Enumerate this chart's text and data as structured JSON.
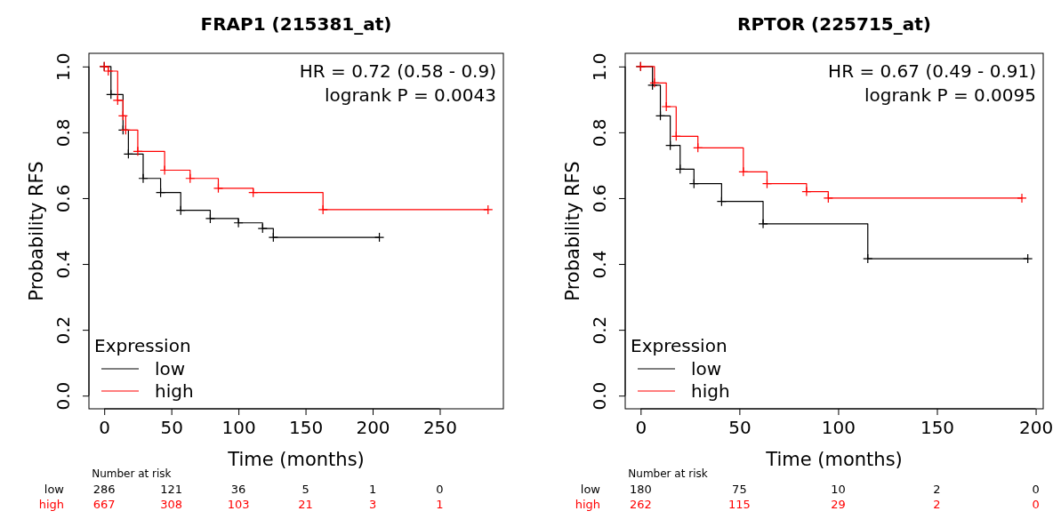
{
  "chart_data": [
    {
      "type": "step",
      "title": "FRAP1 (215381_at)",
      "xlabel": "Time (months)",
      "ylabel": "Probability RFS",
      "legend_title": "Expression",
      "legend": "bottom left",
      "marker": "cross",
      "xlim": [
        -11.4,
        297.4
      ],
      "xticks": [
        0,
        50,
        100,
        150,
        200,
        250
      ],
      "ylim": [
        -0.04,
        1.04
      ],
      "yticks": [
        {
          "value": 0,
          "label": "0.0"
        },
        {
          "value": 0.2,
          "label": "0.2"
        },
        {
          "value": 0.4,
          "label": "0.4"
        },
        {
          "value": 0.6,
          "label": "0.6"
        },
        {
          "value": 0.8,
          "label": "0.8"
        },
        {
          "value": 1,
          "label": "1.0"
        }
      ],
      "series": [
        {
          "name": "low",
          "color": "#000000",
          "x": [
            0,
            5,
            14,
            18,
            29,
            42,
            57,
            79,
            100,
            118,
            126,
            205
          ],
          "values": [
            1,
            0.915,
            0.807,
            0.734,
            0.66,
            0.617,
            0.563,
            0.538,
            0.525,
            0.508,
            0.481,
            0.481
          ]
        },
        {
          "name": "high",
          "color": "#ff0000",
          "x": [
            0,
            3,
            10,
            14,
            16,
            25,
            45,
            64,
            85,
            111,
            163,
            286
          ],
          "values": [
            1,
            0.986,
            0.897,
            0.85,
            0.807,
            0.742,
            0.685,
            0.66,
            0.63,
            0.617,
            0.565,
            0.565
          ]
        }
      ],
      "annotations": [
        "HR = 0.72 (0.58 - 0.9)",
        "logrank P = 0.0043",
        "Number at risk",
        "low 286 121 36 5 1 0",
        "high 667 308 103 21 3 1"
      ]
    },
    {
      "type": "step",
      "title": "RPTOR (225715_at)",
      "xlabel": "Time (months)",
      "ylabel": "Probability RFS",
      "legend_title": "Expression",
      "legend": "bottom left",
      "marker": "cross",
      "xlim": [
        -7.8,
        203.8
      ],
      "xticks": [
        0,
        50,
        100,
        150,
        200
      ],
      "ylim": [
        -0.04,
        1.04
      ],
      "yticks": [
        {
          "value": 0,
          "label": "0.0"
        },
        {
          "value": 0.2,
          "label": "0.2"
        },
        {
          "value": 0.4,
          "label": "0.4"
        },
        {
          "value": 0.6,
          "label": "0.6"
        },
        {
          "value": 0.8,
          "label": "0.8"
        },
        {
          "value": 1,
          "label": "1.0"
        }
      ],
      "series": [
        {
          "name": "low",
          "color": "#000000",
          "x": [
            0,
            6,
            10,
            15,
            20,
            27,
            41,
            62,
            115,
            196
          ],
          "values": [
            1,
            0.943,
            0.85,
            0.76,
            0.688,
            0.644,
            0.59,
            0.522,
            0.416,
            0.416
          ]
        },
        {
          "name": "high",
          "color": "#ff0000",
          "x": [
            0,
            7,
            13,
            18,
            29,
            52,
            64,
            84,
            95,
            193
          ],
          "values": [
            1,
            0.95,
            0.878,
            0.788,
            0.753,
            0.68,
            0.644,
            0.62,
            0.6,
            0.6
          ]
        }
      ],
      "annotations": [
        "HR = 0.67 (0.49 - 0.91)",
        "logrank P = 0.0095",
        "Number at risk",
        "low 180 75 10 2 0",
        "high 262 115 29 2 0"
      ]
    }
  ]
}
